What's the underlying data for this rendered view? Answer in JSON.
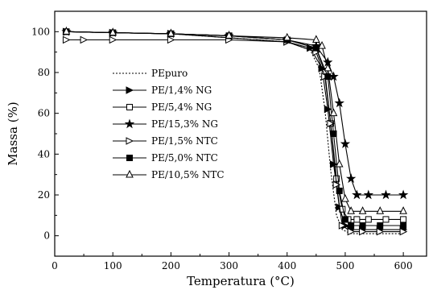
{
  "chart_data": {
    "type": "line",
    "xlabel": "Temperatura (°C)",
    "ylabel": "Massa (%)",
    "xlim": [
      0,
      640
    ],
    "ylim": [
      -10,
      110
    ],
    "x_ticks": [
      0,
      100,
      200,
      300,
      400,
      500,
      600
    ],
    "y_ticks": [
      0,
      20,
      40,
      60,
      80,
      100
    ],
    "grid": false,
    "legend_position": "center-left",
    "series": [
      {
        "name": "PEpuro",
        "marker": "none",
        "line_style": "dotted",
        "x": [
          20,
          100,
          200,
          300,
          400,
          440,
          455,
          465,
          475,
          485,
          495,
          510,
          530,
          560,
          600
        ],
        "y": [
          100,
          99.5,
          99,
          97,
          95,
          91,
          82,
          62,
          32,
          10,
          3,
          1,
          1,
          1,
          1
        ]
      },
      {
        "name": "PE/1,4% NG",
        "marker": "filled-triangle-right",
        "line_style": "solid",
        "x": [
          20,
          100,
          200,
          300,
          400,
          440,
          460,
          470,
          480,
          490,
          500,
          510,
          530,
          560,
          600
        ],
        "y": [
          100,
          99.5,
          99,
          97,
          95,
          92,
          82,
          62,
          35,
          14,
          5,
          3,
          3,
          3,
          3
        ]
      },
      {
        "name": "PE/5,4% NG",
        "marker": "open-square",
        "line_style": "solid",
        "x": [
          20,
          100,
          200,
          300,
          400,
          450,
          465,
          475,
          485,
          495,
          505,
          520,
          540,
          570,
          600
        ],
        "y": [
          100,
          99.5,
          99,
          98,
          96,
          92,
          80,
          55,
          28,
          13,
          8,
          8,
          8,
          8,
          8
        ]
      },
      {
        "name": "PE/15,3% NG",
        "marker": "star",
        "line_style": "solid",
        "x": [
          20,
          100,
          200,
          300,
          400,
          450,
          470,
          480,
          490,
          500,
          510,
          520,
          540,
          570,
          600
        ],
        "y": [
          100,
          99.5,
          99,
          98,
          96,
          93,
          85,
          78,
          65,
          45,
          28,
          20,
          20,
          20,
          20
        ]
      },
      {
        "name": "PE/1,5% NTC",
        "marker": "open-triangle-right",
        "line_style": "solid",
        "x": [
          20,
          50,
          100,
          200,
          300,
          400,
          450,
          465,
          475,
          485,
          495,
          510,
          530,
          560,
          600
        ],
        "y": [
          96,
          96,
          96,
          96,
          96,
          95,
          90,
          78,
          55,
          25,
          5,
          2,
          2,
          2,
          2
        ]
      },
      {
        "name": "PE/5,0% NTC",
        "marker": "filled-square",
        "line_style": "solid",
        "x": [
          20,
          100,
          200,
          300,
          400,
          450,
          470,
          480,
          490,
          500,
          510,
          530,
          560,
          600
        ],
        "y": [
          100,
          99.5,
          99,
          98,
          96,
          92,
          78,
          50,
          22,
          8,
          5,
          5,
          5,
          5
        ]
      },
      {
        "name": "PE/10,5% NTC",
        "marker": "open-triangle-up",
        "line_style": "solid",
        "x": [
          20,
          100,
          200,
          300,
          400,
          450,
          460,
          470,
          480,
          490,
          500,
          510,
          530,
          560,
          600
        ],
        "y": [
          100,
          99.5,
          99,
          98,
          97,
          96,
          93,
          82,
          60,
          35,
          18,
          12,
          12,
          12,
          12
        ]
      }
    ]
  }
}
